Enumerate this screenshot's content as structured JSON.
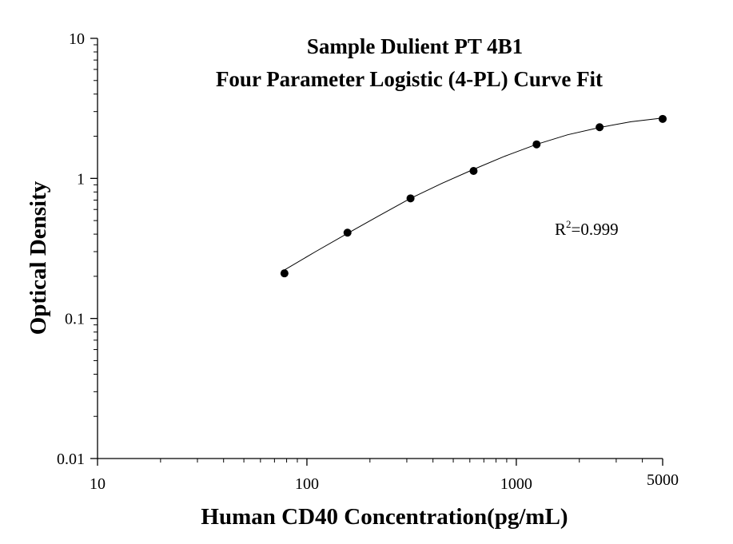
{
  "chart_data": {
    "type": "scatter",
    "title_lines": [
      "Sample Dulient PT 4B1",
      "Four Parameter Logistic (4-PL) Curve Fit"
    ],
    "xlabel": "Human CD40 Concentration(pg/mL)",
    "ylabel": "Optical Density",
    "x_scale": "log",
    "y_scale": "log",
    "xlim": [
      10,
      5000
    ],
    "ylim": [
      0.01,
      10
    ],
    "x_ticks": [
      {
        "value": 10,
        "label": "10"
      },
      {
        "value": 100,
        "label": "100"
      },
      {
        "value": 1000,
        "label": "1000"
      },
      {
        "value": 5000,
        "label": "5000"
      }
    ],
    "y_ticks": [
      {
        "value": 0.01,
        "label": "0.01"
      },
      {
        "value": 0.1,
        "label": "0.1"
      },
      {
        "value": 1,
        "label": "1"
      },
      {
        "value": 10,
        "label": "10"
      }
    ],
    "grid": false,
    "series": [
      {
        "points": [
          {
            "x": 78.125,
            "y": 0.21
          },
          {
            "x": 156.25,
            "y": 0.41
          },
          {
            "x": 312.5,
            "y": 0.72
          },
          {
            "x": 625,
            "y": 1.13
          },
          {
            "x": 1250,
            "y": 1.75
          },
          {
            "x": 2500,
            "y": 2.32
          },
          {
            "x": 5000,
            "y": 2.66
          }
        ]
      }
    ],
    "fit_curve": {
      "x": [
        78.125,
        110,
        156.25,
        220,
        312.5,
        440,
        625,
        880,
        1250,
        1760,
        2500,
        3530,
        5000
      ],
      "y": [
        0.222,
        0.3,
        0.405,
        0.54,
        0.72,
        0.92,
        1.16,
        1.44,
        1.75,
        2.05,
        2.31,
        2.54,
        2.7
      ]
    },
    "annotation": {
      "prefix": "R",
      "superscript": "2",
      "suffix": "=0.999"
    },
    "colors": {
      "points": "#000000",
      "curve": "#000000",
      "axes": "#000000"
    }
  }
}
